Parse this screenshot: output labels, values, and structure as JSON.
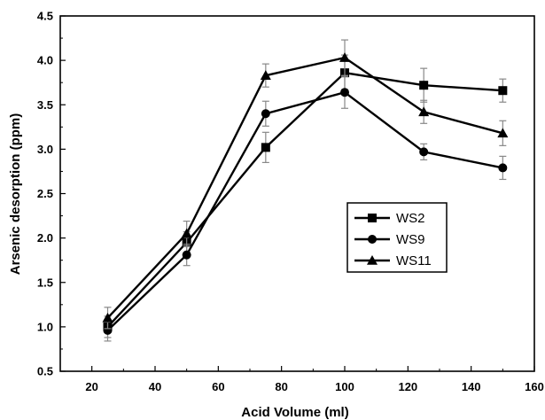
{
  "chart_data": {
    "type": "line",
    "xlabel": "Acid Volume (ml)",
    "ylabel": "Arsenic desorption (ppm)",
    "xlim": [
      10,
      160
    ],
    "ylim": [
      0.5,
      4.5
    ],
    "x_ticks": [
      20,
      40,
      60,
      80,
      100,
      120,
      140,
      160
    ],
    "y_ticks": [
      0.5,
      1.0,
      1.5,
      2.0,
      2.5,
      3.0,
      3.5,
      4.0,
      4.5
    ],
    "x_tick_labels": [
      "20",
      "40",
      "60",
      "80",
      "100",
      "120",
      "140",
      "160"
    ],
    "y_tick_labels": [
      "0.5",
      "1.0",
      "1.5",
      "2.0",
      "2.5",
      "3.0",
      "3.5",
      "4.0",
      "4.5"
    ],
    "grid": false,
    "legend_position": "center-right",
    "x": [
      25,
      50,
      75,
      100,
      125,
      150
    ],
    "series": [
      {
        "name": "WS2",
        "marker": "square",
        "values": [
          1.0,
          1.95,
          3.02,
          3.86,
          3.72,
          3.66
        ],
        "errors": [
          0.12,
          0.12,
          0.17,
          0.2,
          0.19,
          0.13
        ]
      },
      {
        "name": "WS9",
        "marker": "circle",
        "values": [
          0.96,
          1.81,
          3.4,
          3.64,
          2.97,
          2.79
        ],
        "errors": [
          0.12,
          0.12,
          0.14,
          0.18,
          0.09,
          0.13
        ]
      },
      {
        "name": "WS11",
        "marker": "triangle",
        "values": [
          1.1,
          2.05,
          3.83,
          4.03,
          3.42,
          3.18
        ],
        "errors": [
          0.12,
          0.14,
          0.13,
          0.2,
          0.13,
          0.14
        ]
      }
    ]
  }
}
